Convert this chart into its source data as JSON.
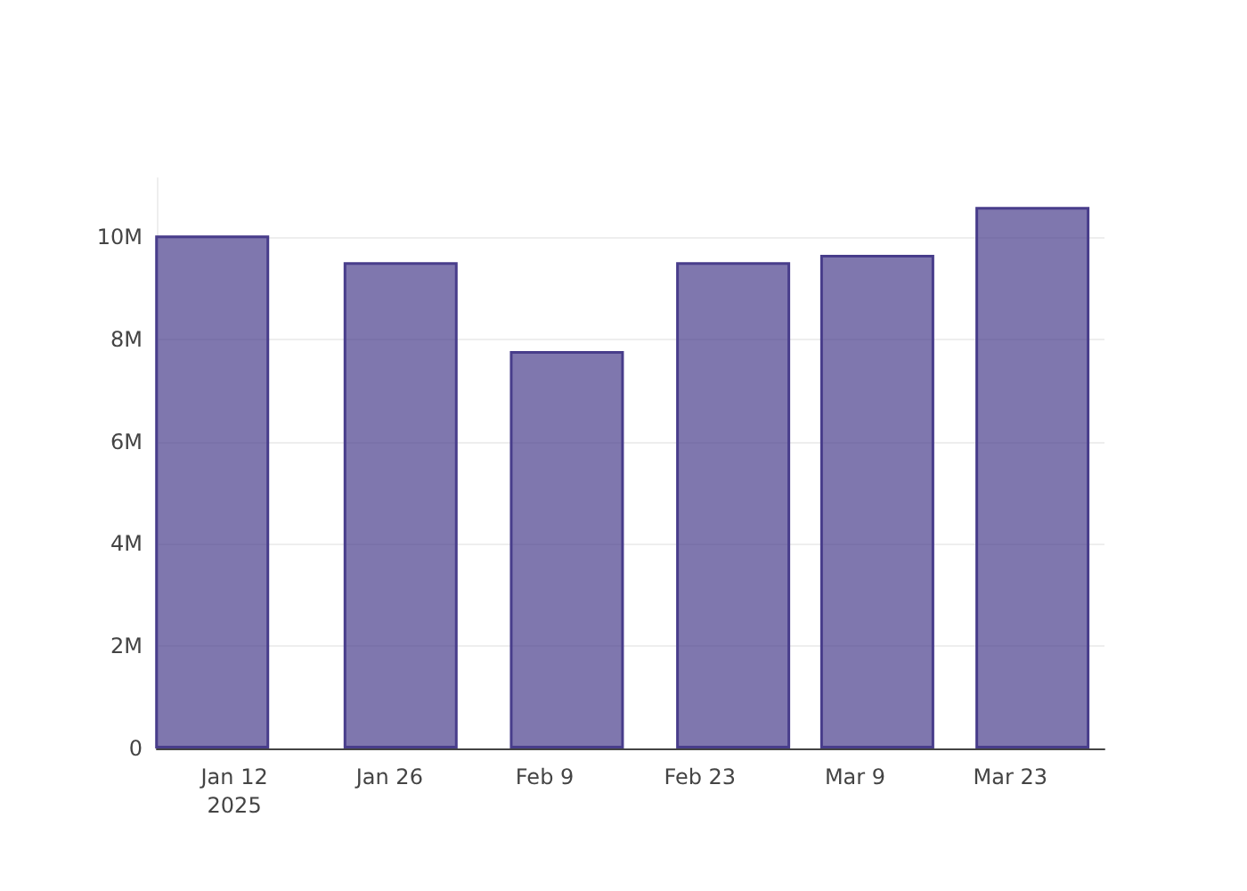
{
  "chart_data": {
    "type": "bar",
    "x": [
      "2025-01-10",
      "2025-01-27",
      "2025-02-11",
      "2025-02-26",
      "2025-03-11",
      "2025-03-25"
    ],
    "values": [
      10030000,
      9510000,
      7770000,
      9510000,
      9650000,
      10590000
    ],
    "color": "#483d8b",
    "xlim": [
      "2025-01-05T00:00",
      "2025-03-31T12:00"
    ],
    "xticks": [
      {
        "value": "2025-01-12",
        "label": "Jan 12\n2025"
      },
      {
        "value": "2025-01-26",
        "label": "Jan 26"
      },
      {
        "value": "2025-02-09",
        "label": "Feb 9"
      },
      {
        "value": "2025-02-23",
        "label": "Feb 23"
      },
      {
        "value": "2025-03-09",
        "label": "Mar 9"
      },
      {
        "value": "2025-03-23",
        "label": "Mar 23"
      }
    ],
    "yticks": [
      0,
      {
        "value": 2000000,
        "label": "2M"
      },
      {
        "value": 4000000,
        "label": "4M"
      },
      {
        "value": 6000000,
        "label": "6M"
      },
      {
        "value": 8000000,
        "label": "8M"
      },
      {
        "value": 10000000,
        "label": "10M"
      }
    ],
    "ylim": [
      0,
      11150000
    ],
    "grid": "y"
  }
}
